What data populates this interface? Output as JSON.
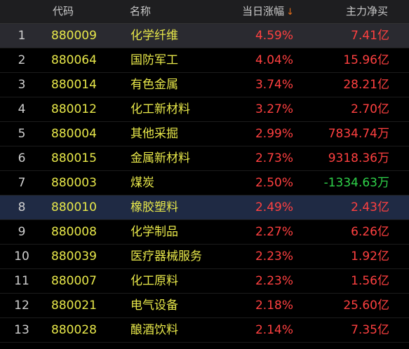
{
  "header": {
    "code": "代码",
    "name": "名称",
    "change": "当日涨幅",
    "sort_icon": "sort-down-arrow",
    "flow": "主力净买"
  },
  "rows": [
    {
      "idx": "1",
      "code": "880009",
      "name": "化学纤维",
      "change": "4.59%",
      "flow": "7.41亿",
      "flow_negative": false
    },
    {
      "idx": "2",
      "code": "880064",
      "name": "国防军工",
      "change": "4.04%",
      "flow": "15.96亿",
      "flow_negative": false
    },
    {
      "idx": "3",
      "code": "880014",
      "name": "有色金属",
      "change": "3.74%",
      "flow": "28.21亿",
      "flow_negative": false
    },
    {
      "idx": "4",
      "code": "880012",
      "name": "化工新材料",
      "change": "3.27%",
      "flow": "2.70亿",
      "flow_negative": false
    },
    {
      "idx": "5",
      "code": "880004",
      "name": "其他采掘",
      "change": "2.99%",
      "flow": "7834.74万",
      "flow_negative": false
    },
    {
      "idx": "6",
      "code": "880015",
      "name": "金属新材料",
      "change": "2.73%",
      "flow": "9318.36万",
      "flow_negative": false
    },
    {
      "idx": "7",
      "code": "880003",
      "name": "煤炭",
      "change": "2.50%",
      "flow": "-1334.63万",
      "flow_negative": true
    },
    {
      "idx": "8",
      "code": "880010",
      "name": "橡胶塑料",
      "change": "2.49%",
      "flow": "2.43亿",
      "flow_negative": false
    },
    {
      "idx": "9",
      "code": "880008",
      "name": "化学制品",
      "change": "2.27%",
      "flow": "6.26亿",
      "flow_negative": false
    },
    {
      "idx": "10",
      "code": "880039",
      "name": "医疗器械服务",
      "change": "2.23%",
      "flow": "1.92亿",
      "flow_negative": false
    },
    {
      "idx": "11",
      "code": "880007",
      "name": "化工原料",
      "change": "2.23%",
      "flow": "1.56亿",
      "flow_negative": false
    },
    {
      "idx": "12",
      "code": "880021",
      "name": "电气设备",
      "change": "2.18%",
      "flow": "25.60亿",
      "flow_negative": false
    },
    {
      "idx": "13",
      "code": "880028",
      "name": "酿酒饮料",
      "change": "2.14%",
      "flow": "7.35亿",
      "flow_negative": false
    }
  ],
  "colors": {
    "up": "#ff4040",
    "down": "#2fd34a",
    "code_name": "#e8e84a",
    "sort_icon": "#e8701a"
  }
}
